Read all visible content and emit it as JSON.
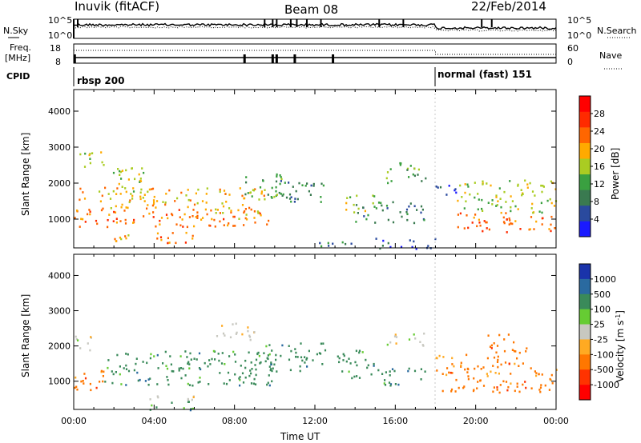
{
  "header": {
    "station": "Inuvik (fitACF)",
    "beam": "Beam 08",
    "date": "22/Feb/2014"
  },
  "top_panel": {
    "left_label": "N.Sky",
    "right_label": "N.Search",
    "left_ticks": [
      "10^5",
      "10^0"
    ],
    "right_ticks": [
      "10^5",
      "10^0"
    ]
  },
  "freq_panel": {
    "left_label_line1": "Freq.",
    "left_label_line2": "[MHz]",
    "left_ticks": [
      "18",
      "8"
    ],
    "right_ticks": [
      "60",
      "0"
    ],
    "right_label": "Nave"
  },
  "cpid": {
    "label": "CPID",
    "modes": [
      {
        "name": "rbsp 200",
        "start_hour": 0,
        "end_hour": 18
      },
      {
        "name": "normal (fast) 151",
        "start_hour": 18,
        "end_hour": 24
      }
    ]
  },
  "colors": {
    "power_scale": [
      "#1a1aff",
      "#2a4a9e",
      "#3a7a50",
      "#3aa040",
      "#aacc22",
      "#ffaa00",
      "#ff6600",
      "#ff2a00",
      "#ff0000"
    ],
    "velocity_scale": [
      "#1a33aa",
      "#2a6aa0",
      "#3a8a5a",
      "#66cc33",
      "#c8c8c0",
      "#ffaa22",
      "#ff7700",
      "#ff3300",
      "#ff0000"
    ]
  },
  "chart_data": [
    {
      "type": "heatmap",
      "panel": "power",
      "ylabel": "Slant Range [km]",
      "y_ticks": [
        1000,
        2000,
        3000,
        4000
      ],
      "ylim": [
        200,
        4600
      ],
      "colorbar_label": "Power [dB]",
      "colorbar_ticks": [
        "4",
        "8",
        "12",
        "16",
        "20",
        "24",
        "28"
      ],
      "colorbar_range": [
        0,
        32
      ],
      "regions": [
        {
          "t0": 0.0,
          "t1": 10.0,
          "r0": 800,
          "r1": 1300,
          "v": 28
        },
        {
          "t0": 0.2,
          "t1": 6.0,
          "r0": 1300,
          "r1": 1900,
          "v": 22
        },
        {
          "t0": 0.2,
          "t1": 1.5,
          "r0": 2400,
          "r1": 2900,
          "v": 20
        },
        {
          "t0": 1.5,
          "t1": 3.5,
          "r0": 1700,
          "r1": 2500,
          "v": 18
        },
        {
          "t0": 4.0,
          "t1": 6.5,
          "r0": 350,
          "r1": 650,
          "v": 28
        },
        {
          "t0": 2.0,
          "t1": 3.0,
          "r0": 400,
          "r1": 600,
          "v": 24
        },
        {
          "t0": 6.0,
          "t1": 9.5,
          "r0": 1000,
          "r1": 1900,
          "v": 24
        },
        {
          "t0": 8.5,
          "t1": 10.5,
          "r0": 1500,
          "r1": 2300,
          "v": 14
        },
        {
          "t0": 10.0,
          "t1": 12.5,
          "r0": 1500,
          "r1": 2200,
          "v": 12
        },
        {
          "t0": 12.0,
          "t1": 14.0,
          "r0": 250,
          "r1": 400,
          "v": 10
        },
        {
          "t0": 13.5,
          "t1": 15.0,
          "r0": 1200,
          "r1": 1700,
          "v": 20
        },
        {
          "t0": 14.0,
          "t1": 17.5,
          "r0": 900,
          "r1": 1500,
          "v": 10
        },
        {
          "t0": 15.5,
          "t1": 17.5,
          "r0": 2000,
          "r1": 2600,
          "v": 16
        },
        {
          "t0": 19.0,
          "t1": 24.0,
          "r0": 650,
          "r1": 1200,
          "v": 28
        },
        {
          "t0": 19.0,
          "t1": 24.0,
          "r0": 1200,
          "r1": 2100,
          "v": 18
        },
        {
          "t0": 18.0,
          "t1": 19.0,
          "r0": 1700,
          "r1": 2000,
          "v": 8
        },
        {
          "t0": 15.0,
          "t1": 18.0,
          "r0": 200,
          "r1": 500,
          "v": 8
        }
      ]
    },
    {
      "type": "heatmap",
      "panel": "velocity",
      "xlabel": "Time UT",
      "ylabel": "Slant Range [km]",
      "x_ticks": [
        "00:00",
        "04:00",
        "08:00",
        "12:00",
        "16:00",
        "20:00",
        "00:00"
      ],
      "xlim": [
        0,
        24
      ],
      "y_ticks": [
        1000,
        2000,
        3000,
        4000
      ],
      "ylim": [
        200,
        4600
      ],
      "colorbar_label": "Velocity [m s",
      "colorbar_label_sup": "-1",
      "colorbar_label_end": "]",
      "colorbar_ticks": [
        "1000",
        "500",
        "100",
        "25",
        "-25",
        "-100",
        "-500",
        "-1000"
      ],
      "regions": [
        {
          "t0": 0.0,
          "t1": 1.5,
          "r0": 700,
          "r1": 1400,
          "v": -300
        },
        {
          "t0": 0.0,
          "t1": 1.0,
          "r0": 1800,
          "r1": 2300,
          "v": 0
        },
        {
          "t0": 1.5,
          "t1": 10.0,
          "r0": 900,
          "r1": 1900,
          "v": 60
        },
        {
          "t0": 3.5,
          "t1": 6.0,
          "r0": 200,
          "r1": 450,
          "v": 80
        },
        {
          "t0": 3.5,
          "t1": 6.0,
          "r0": 450,
          "r1": 600,
          "v": 0
        },
        {
          "t0": 7.0,
          "t1": 9.0,
          "r0": 2200,
          "r1": 2700,
          "v": 0
        },
        {
          "t0": 9.5,
          "t1": 12.5,
          "r0": 1300,
          "r1": 2100,
          "v": 60
        },
        {
          "t0": 13.0,
          "t1": 15.0,
          "r0": 1100,
          "r1": 1900,
          "v": 60
        },
        {
          "t0": 15.5,
          "t1": 17.5,
          "r0": 2000,
          "r1": 2400,
          "v": 0
        },
        {
          "t0": 15.0,
          "t1": 17.5,
          "r0": 900,
          "r1": 1400,
          "v": 60
        },
        {
          "t0": 18.0,
          "t1": 24.0,
          "r0": 700,
          "r1": 1500,
          "v": -300
        },
        {
          "t0": 20.5,
          "t1": 22.5,
          "r0": 1500,
          "r1": 2400,
          "v": -200
        },
        {
          "t0": 18.0,
          "t1": 19.5,
          "r0": 1400,
          "r1": 1800,
          "v": -50
        }
      ]
    }
  ]
}
